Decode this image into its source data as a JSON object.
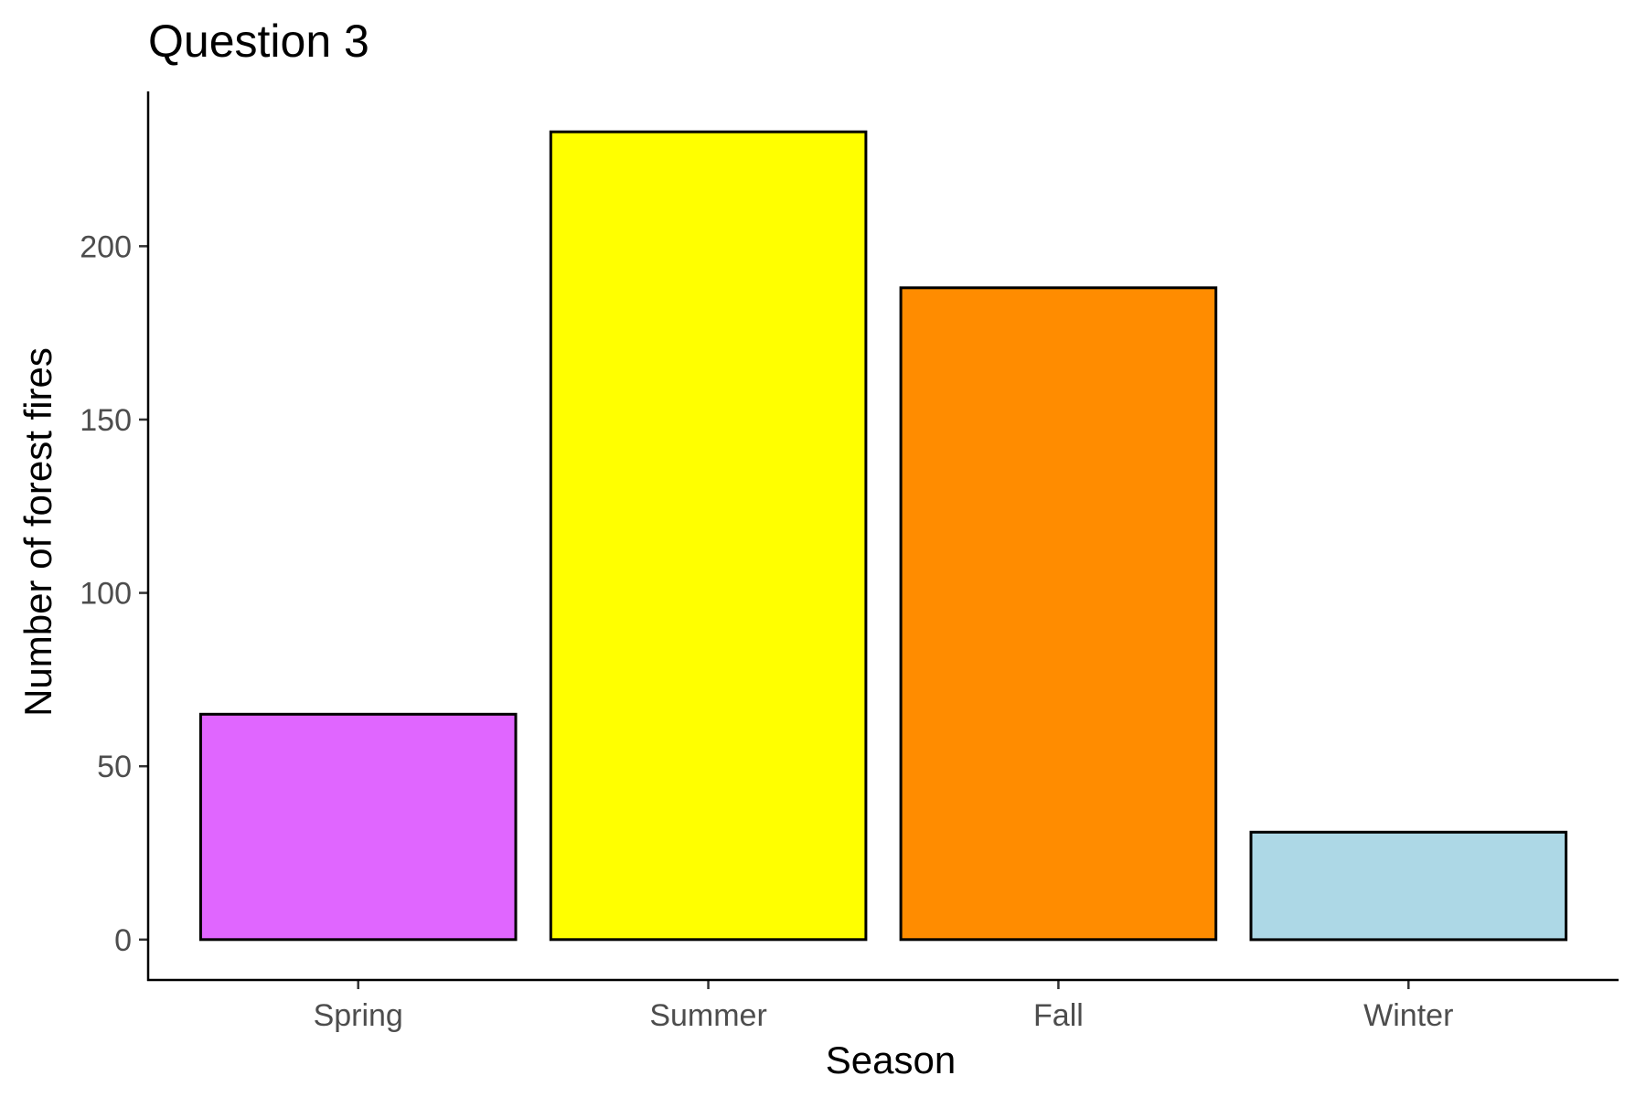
{
  "chart_data": {
    "type": "bar",
    "title": "Question 3",
    "xlabel": "Season",
    "ylabel": "Number of forest fires",
    "categories": [
      "Spring",
      "Summer",
      "Fall",
      "Winter"
    ],
    "values": [
      65,
      233,
      188,
      31
    ],
    "colors": [
      "#e066ff",
      "#ffff00",
      "#ff8c00",
      "#add8e6"
    ],
    "bar_outline": "#000000",
    "ylim": [
      -11.65,
      244.65
    ],
    "yticks": [
      0,
      50,
      100,
      150,
      200
    ],
    "ytick_labels": [
      "0",
      "50",
      "100",
      "150",
      "200"
    ],
    "grid": false,
    "legend": "none"
  }
}
